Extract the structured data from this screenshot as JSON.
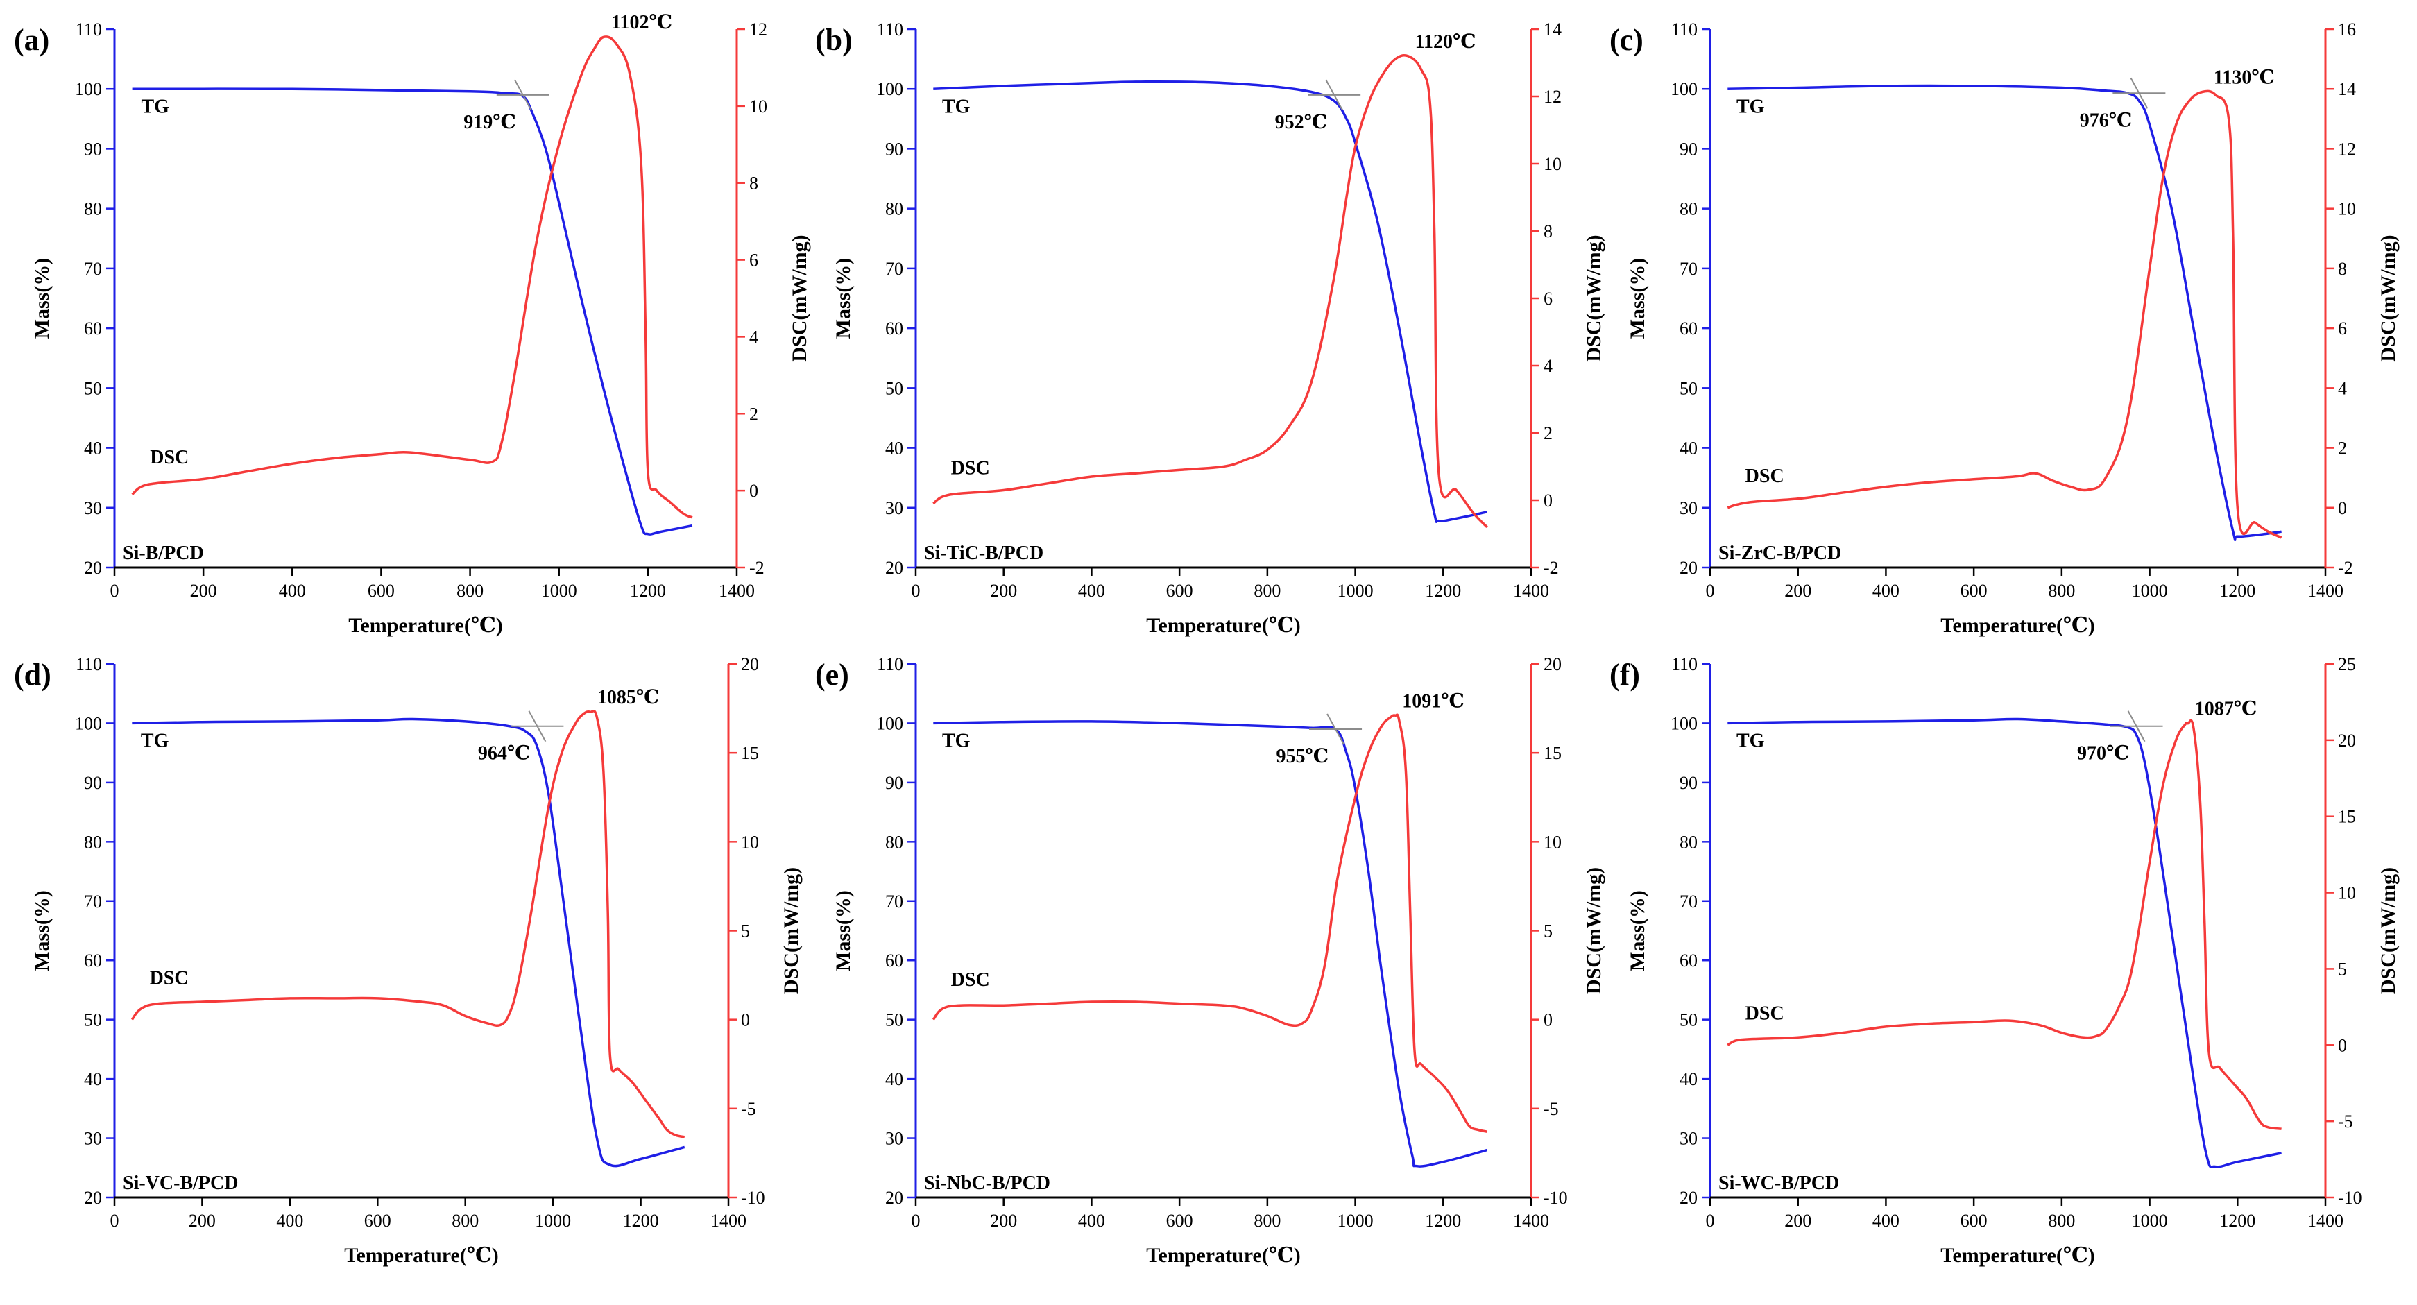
{
  "colors": {
    "tg": "#1f1fe6",
    "dsc": "#f53a3a",
    "right_axis": "#f53a3a",
    "marker": "#8c8c8c"
  },
  "chart_data": [
    {
      "type": "line",
      "panel_label": "(a)",
      "sample": "Si-B/PCD",
      "xlabel": "Temperature(℃)",
      "ylabel_left": "Mass(%)",
      "ylabel_right": "DSC(mW/mg)",
      "xlim": [
        0,
        1400
      ],
      "xticks": [
        0,
        200,
        400,
        600,
        800,
        1000,
        1200,
        1400
      ],
      "ylim_left": [
        20,
        110
      ],
      "yticks_left": [
        20,
        30,
        40,
        50,
        60,
        70,
        80,
        90,
        100,
        110
      ],
      "ylim_right": [
        -2,
        12
      ],
      "yticks_right": [
        -2,
        0,
        2,
        4,
        6,
        8,
        10,
        12
      ],
      "series": [
        {
          "name": "TG",
          "axis": "left",
          "x": [
            40,
            200,
            400,
            600,
            800,
            880,
            919,
            940,
            970,
            1000,
            1050,
            1100,
            1150,
            1185,
            1200,
            1230,
            1300
          ],
          "y": [
            100,
            100,
            100,
            99.8,
            99.6,
            99.3,
            98.8,
            96,
            90,
            81,
            65,
            50,
            36,
            27,
            25.6,
            26,
            27
          ]
        },
        {
          "name": "DSC",
          "axis": "right",
          "x": [
            40,
            60,
            100,
            200,
            300,
            400,
            500,
            600,
            650,
            700,
            800,
            850,
            870,
            900,
            950,
            1000,
            1050,
            1080,
            1102,
            1130,
            1160,
            1185,
            1195,
            1200,
            1220,
            1250,
            1280,
            1300
          ],
          "y": [
            -0.1,
            0.1,
            0.2,
            0.3,
            0.5,
            0.7,
            0.85,
            0.95,
            1.0,
            0.95,
            0.8,
            0.75,
            1.2,
            3,
            6.5,
            9,
            10.8,
            11.5,
            11.8,
            11.6,
            10.8,
            8.5,
            4,
            0.5,
            0,
            -0.3,
            -0.6,
            -0.7
          ]
        }
      ],
      "annotations": {
        "onset": "919℃",
        "peak": "1102℃",
        "tg_label": "TG",
        "dsc_label": "DSC"
      },
      "onset_point": [
        919,
        99
      ],
      "peak_point": [
        1102,
        11.8
      ]
    },
    {
      "type": "line",
      "panel_label": "(b)",
      "sample": "Si-TiC-B/PCD",
      "xlabel": "Temperature(℃)",
      "ylabel_left": "Mass(%)",
      "ylabel_right": "DSC(mW/mg)",
      "xlim": [
        0,
        1400
      ],
      "xticks": [
        0,
        200,
        400,
        600,
        800,
        1000,
        1200,
        1400
      ],
      "ylim_left": [
        20,
        110
      ],
      "yticks_left": [
        20,
        30,
        40,
        50,
        60,
        70,
        80,
        90,
        100,
        110
      ],
      "ylim_right": [
        -2,
        14
      ],
      "yticks_right": [
        -2,
        0,
        2,
        4,
        6,
        8,
        10,
        12,
        14
      ],
      "series": [
        {
          "name": "TG",
          "axis": "left",
          "x": [
            40,
            200,
            400,
            500,
            600,
            700,
            800,
            900,
            952,
            980,
            1000,
            1050,
            1100,
            1150,
            1180,
            1190,
            1230,
            1300
          ],
          "y": [
            100,
            100.5,
            101,
            101.2,
            101.2,
            101,
            100.5,
            99.5,
            98,
            95,
            91,
            78,
            60,
            40,
            29,
            27.8,
            28.2,
            29.3
          ]
        },
        {
          "name": "DSC",
          "axis": "right",
          "x": [
            40,
            60,
            100,
            200,
            300,
            400,
            500,
            600,
            700,
            750,
            800,
            850,
            900,
            950,
            980,
            1000,
            1030,
            1060,
            1090,
            1120,
            1150,
            1170,
            1180,
            1190,
            1230,
            1270,
            1300
          ],
          "y": [
            -0.1,
            0.1,
            0.2,
            0.3,
            0.5,
            0.7,
            0.8,
            0.9,
            1.0,
            1.2,
            1.5,
            2.2,
            3.5,
            6.5,
            9,
            10.5,
            11.8,
            12.6,
            13.1,
            13.2,
            12.8,
            11.8,
            8,
            0.8,
            0.3,
            -0.4,
            -0.8
          ]
        }
      ],
      "annotations": {
        "onset": "952℃",
        "peak": "1120℃",
        "tg_label": "TG",
        "dsc_label": "DSC"
      },
      "onset_point": [
        952,
        99
      ],
      "peak_point": [
        1120,
        13.2
      ]
    },
    {
      "type": "line",
      "panel_label": "(c)",
      "sample": "Si-ZrC-B/PCD",
      "xlabel": "Temperature(℃)",
      "ylabel_left": "Mass(%)",
      "ylabel_right": "DSC(mW/mg)",
      "xlim": [
        0,
        1400
      ],
      "xticks": [
        0,
        200,
        400,
        600,
        800,
        1000,
        1200,
        1400
      ],
      "ylim_left": [
        20,
        110
      ],
      "yticks_left": [
        20,
        30,
        40,
        50,
        60,
        70,
        80,
        90,
        100,
        110
      ],
      "ylim_right": [
        -2,
        16
      ],
      "yticks_right": [
        -2,
        0,
        2,
        4,
        6,
        8,
        10,
        12,
        14,
        16
      ],
      "series": [
        {
          "name": "TG",
          "axis": "left",
          "x": [
            40,
            200,
            400,
            600,
            800,
            900,
            950,
            976,
            1000,
            1050,
            1100,
            1150,
            1190,
            1200,
            1250,
            1300
          ],
          "y": [
            100,
            100.2,
            100.5,
            100.5,
            100.2,
            99.7,
            99.3,
            98,
            94,
            80,
            60,
            40,
            26,
            25.2,
            25.5,
            26
          ]
        },
        {
          "name": "DSC",
          "axis": "right",
          "x": [
            40,
            60,
            100,
            200,
            300,
            400,
            500,
            600,
            700,
            740,
            780,
            820,
            860,
            900,
            950,
            1000,
            1030,
            1060,
            1090,
            1120,
            1150,
            1180,
            1190,
            1200,
            1240,
            1270,
            1300
          ],
          "y": [
            0,
            0.1,
            0.2,
            0.3,
            0.5,
            0.7,
            0.85,
            0.95,
            1.05,
            1.15,
            0.9,
            0.7,
            0.6,
            1.0,
            3,
            8,
            11,
            12.8,
            13.6,
            13.9,
            13.8,
            13.0,
            9,
            0,
            -0.5,
            -0.8,
            -1.0
          ]
        }
      ],
      "annotations": {
        "onset": "976℃",
        "peak": "1130℃",
        "tg_label": "TG",
        "dsc_label": "DSC"
      },
      "onset_point": [
        976,
        99.3
      ],
      "peak_point": [
        1130,
        13.9
      ]
    },
    {
      "type": "line",
      "panel_label": "(d)",
      "sample": "Si-VC-B/PCD",
      "xlabel": "Temperature(℃)",
      "ylabel_left": "Mass(%)",
      "ylabel_right": "DSC(mW/mg)",
      "xlim": [
        0,
        1400
      ],
      "xticks": [
        0,
        200,
        400,
        600,
        800,
        1000,
        1200,
        1400
      ],
      "ylim_left": [
        20,
        110
      ],
      "yticks_left": [
        20,
        30,
        40,
        50,
        60,
        70,
        80,
        90,
        100,
        110
      ],
      "ylim_right": [
        -10,
        20
      ],
      "yticks_right": [
        -10,
        -5,
        0,
        5,
        10,
        15,
        20
      ],
      "series": [
        {
          "name": "TG",
          "axis": "left",
          "x": [
            40,
            200,
            400,
            600,
            680,
            800,
            900,
            940,
            964,
            990,
            1020,
            1060,
            1100,
            1130,
            1200,
            1300
          ],
          "y": [
            100,
            100.2,
            100.3,
            100.5,
            100.7,
            100.3,
            99.5,
            98.5,
            96,
            88,
            72,
            50,
            30,
            25.5,
            26.5,
            28.5
          ]
        },
        {
          "name": "DSC",
          "axis": "right",
          "x": [
            40,
            60,
            100,
            200,
            300,
            400,
            500,
            600,
            700,
            750,
            800,
            850,
            880,
            900,
            920,
            950,
            990,
            1020,
            1050,
            1070,
            1085,
            1100,
            1115,
            1125,
            1130,
            1150,
            1180,
            1210,
            1240,
            1260,
            1280,
            1300
          ],
          "y": [
            0,
            0.6,
            0.9,
            1.0,
            1.1,
            1.2,
            1.2,
            1.2,
            1.0,
            0.8,
            0.2,
            -0.2,
            -0.3,
            0.3,
            2,
            6,
            12,
            15,
            16.6,
            17.2,
            17.3,
            17.0,
            14,
            6,
            -2,
            -2.8,
            -3.5,
            -4.5,
            -5.5,
            -6.2,
            -6.5,
            -6.6
          ]
        }
      ],
      "annotations": {
        "onset": "964℃",
        "peak": "1085℃",
        "tg_label": "TG",
        "dsc_label": "DSC"
      },
      "onset_point": [
        964,
        99.5
      ],
      "peak_point": [
        1085,
        17.3
      ]
    },
    {
      "type": "line",
      "panel_label": "(e)",
      "sample": "Si-NbC-B/PCD",
      "xlabel": "Temperature(℃)",
      "ylabel_left": "Mass(%)",
      "ylabel_right": "DSC(mW/mg)",
      "xlim": [
        0,
        1400
      ],
      "xticks": [
        0,
        200,
        400,
        600,
        800,
        1000,
        1200,
        1400
      ],
      "ylim_left": [
        20,
        110
      ],
      "yticks_left": [
        20,
        30,
        40,
        50,
        60,
        70,
        80,
        90,
        100,
        110
      ],
      "ylim_right": [
        -10,
        20
      ],
      "yticks_right": [
        -10,
        -5,
        0,
        5,
        10,
        15,
        20
      ],
      "series": [
        {
          "name": "TG",
          "axis": "left",
          "x": [
            40,
            200,
            400,
            600,
            800,
            900,
            955,
            980,
            1000,
            1030,
            1060,
            1100,
            1130,
            1140,
            1200,
            1300
          ],
          "y": [
            100,
            100.2,
            100.3,
            100,
            99.5,
            99.2,
            99,
            95,
            89,
            75,
            58,
            38,
            27,
            25.3,
            26,
            28
          ]
        },
        {
          "name": "DSC",
          "axis": "right",
          "x": [
            40,
            60,
            100,
            200,
            300,
            400,
            500,
            600,
            700,
            750,
            800,
            850,
            880,
            900,
            930,
            960,
            1000,
            1030,
            1060,
            1080,
            1091,
            1100,
            1115,
            1125,
            1135,
            1150,
            1180,
            1210,
            1240,
            1260,
            1280,
            1300
          ],
          "y": [
            0,
            0.6,
            0.8,
            0.8,
            0.9,
            1.0,
            1.0,
            0.9,
            0.8,
            0.6,
            0.2,
            -0.3,
            -0.2,
            0.5,
            3,
            8,
            12.5,
            15,
            16.5,
            17,
            17.1,
            16.8,
            14,
            6,
            -1.8,
            -2.5,
            -3.2,
            -4.0,
            -5.2,
            -6.0,
            -6.2,
            -6.3
          ]
        }
      ],
      "annotations": {
        "onset": "955℃",
        "peak": "1091℃",
        "tg_label": "TG",
        "dsc_label": "DSC"
      },
      "onset_point": [
        955,
        99
      ],
      "peak_point": [
        1091,
        17.1
      ]
    },
    {
      "type": "line",
      "panel_label": "(f)",
      "sample": "Si-WC-B/PCD",
      "xlabel": "Temperature(℃)",
      "ylabel_left": "Mass(%)",
      "ylabel_right": "DSC(mW/mg)",
      "xlim": [
        0,
        1400
      ],
      "xticks": [
        0,
        200,
        400,
        600,
        800,
        1000,
        1200,
        1400
      ],
      "ylim_left": [
        20,
        110
      ],
      "yticks_left": [
        20,
        30,
        40,
        50,
        60,
        70,
        80,
        90,
        100,
        110
      ],
      "ylim_right": [
        -10,
        25
      ],
      "yticks_right": [
        -10,
        -5,
        0,
        5,
        10,
        15,
        20,
        25
      ],
      "series": [
        {
          "name": "TG",
          "axis": "left",
          "x": [
            40,
            200,
            400,
            600,
            700,
            800,
            900,
            950,
            970,
            990,
            1020,
            1060,
            1100,
            1130,
            1150,
            1200,
            1300
          ],
          "y": [
            100,
            100.2,
            100.3,
            100.5,
            100.7,
            100.3,
            99.8,
            99.3,
            98,
            93,
            80,
            60,
            40,
            27,
            25.2,
            26,
            27.5
          ]
        },
        {
          "name": "DSC",
          "axis": "right",
          "x": [
            40,
            60,
            100,
            200,
            300,
            400,
            500,
            600,
            680,
            750,
            800,
            850,
            880,
            900,
            930,
            960,
            1000,
            1030,
            1060,
            1080,
            1087,
            1100,
            1115,
            1125,
            1135,
            1160,
            1190,
            1220,
            1250,
            1270,
            1300
          ],
          "y": [
            0,
            0.3,
            0.4,
            0.5,
            0.8,
            1.2,
            1.4,
            1.5,
            1.6,
            1.3,
            0.8,
            0.5,
            0.6,
            1.0,
            2.5,
            5,
            12,
            17,
            20,
            21,
            21.1,
            20.8,
            16,
            8,
            -0.5,
            -1.5,
            -2.5,
            -3.5,
            -5,
            -5.4,
            -5.5
          ]
        }
      ],
      "annotations": {
        "onset": "970℃",
        "peak": "1087℃",
        "tg_label": "TG",
        "dsc_label": "DSC"
      },
      "onset_point": [
        970,
        99.5
      ],
      "peak_point": [
        1087,
        21.1
      ]
    }
  ]
}
